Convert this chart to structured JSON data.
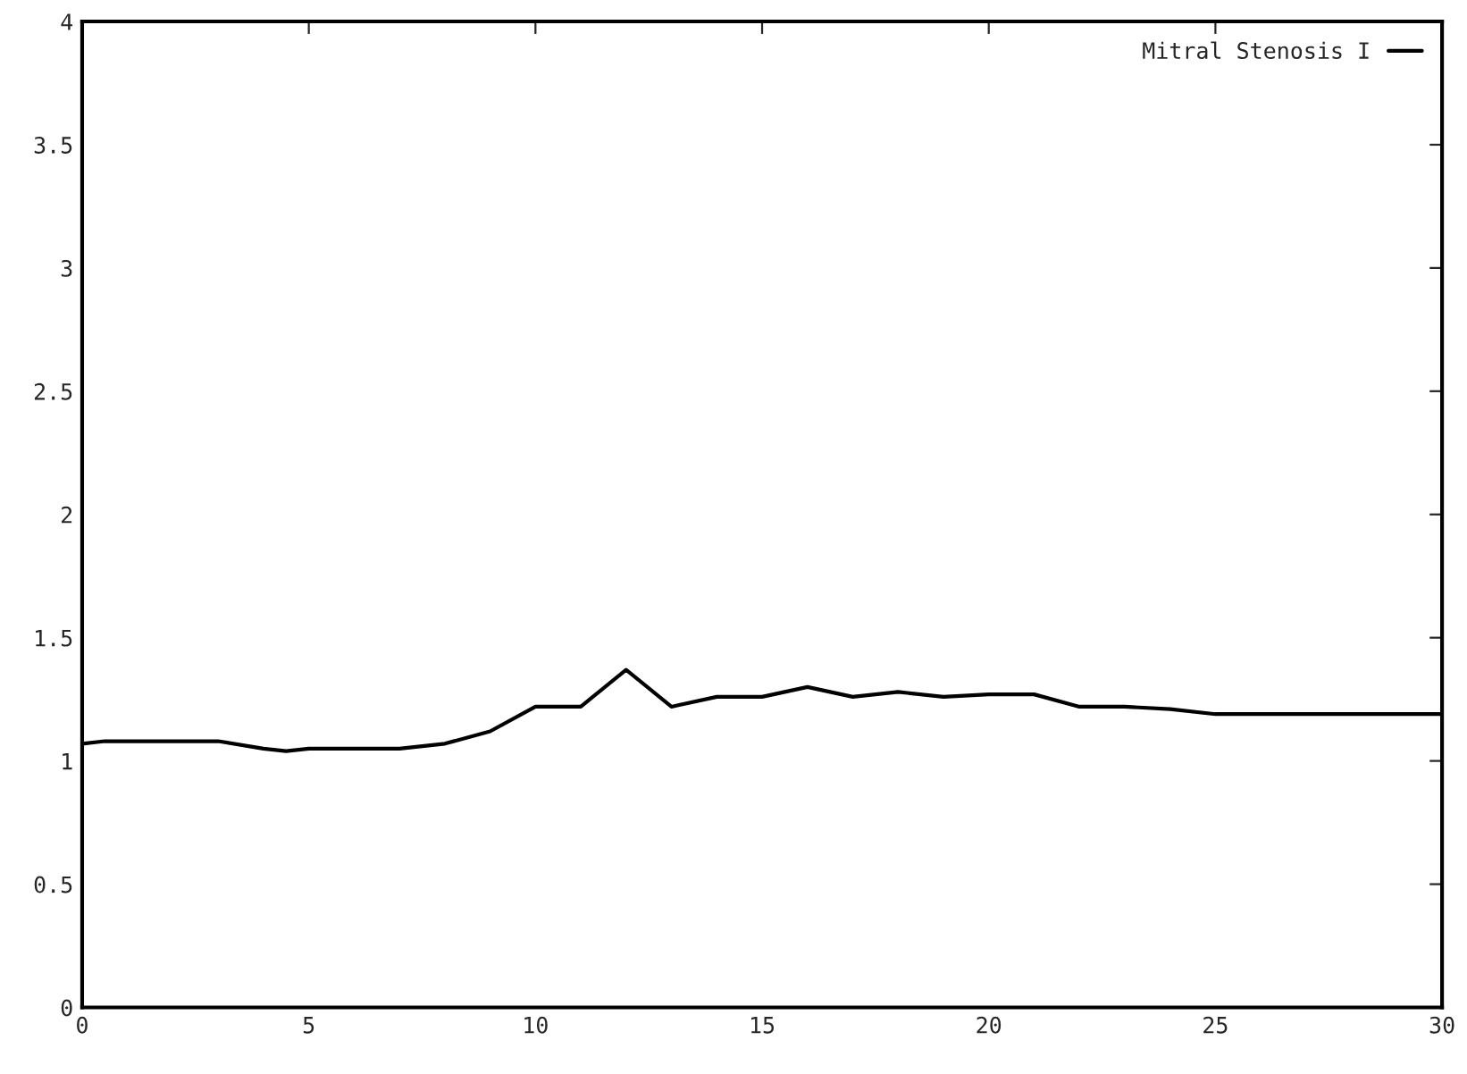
{
  "chart_data": {
    "type": "line",
    "x": [
      0,
      0.5,
      1,
      2,
      3,
      4,
      4.5,
      5,
      6,
      7,
      8,
      9,
      10,
      11,
      12,
      13,
      14,
      15,
      16,
      17,
      18,
      19,
      20,
      21,
      22,
      23,
      24,
      25,
      26,
      27,
      28,
      29,
      30
    ],
    "series": [
      {
        "name": "Mitral Stenosis I",
        "color": "#000000",
        "values": [
          1.07,
          1.08,
          1.08,
          1.08,
          1.08,
          1.05,
          1.04,
          1.05,
          1.05,
          1.05,
          1.07,
          1.12,
          1.22,
          1.22,
          1.37,
          1.22,
          1.26,
          1.26,
          1.3,
          1.26,
          1.28,
          1.26,
          1.27,
          1.27,
          1.22,
          1.22,
          1.21,
          1.19,
          1.19,
          1.19,
          1.19,
          1.19,
          1.19
        ]
      }
    ],
    "xlim": [
      0,
      30
    ],
    "xticks": [
      0,
      5,
      10,
      15,
      20,
      25,
      30
    ],
    "ylim": [
      0,
      4
    ],
    "yticks": [
      0,
      0.5,
      1,
      1.5,
      2,
      2.5,
      3,
      3.5,
      4
    ],
    "grid": false,
    "legend": "top right",
    "marker": "none",
    "line_style": "solid"
  }
}
